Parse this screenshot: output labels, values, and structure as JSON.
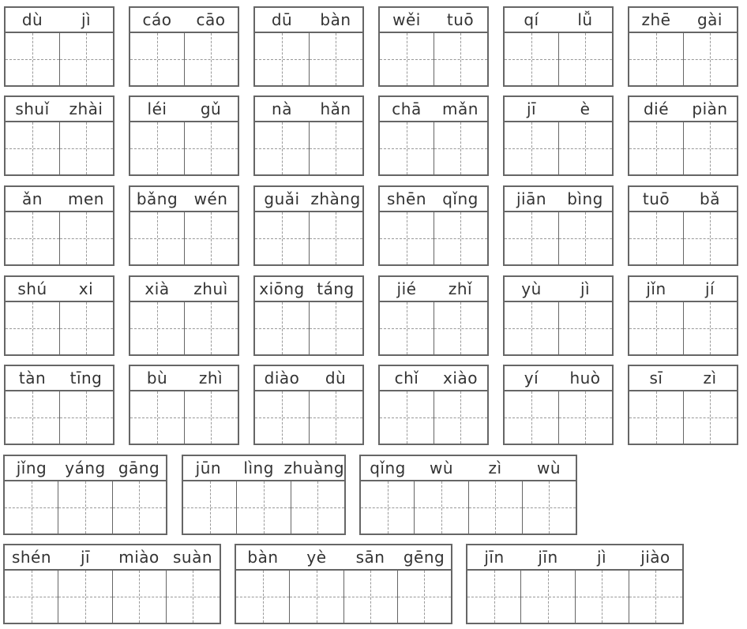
{
  "rows": [
    [
      [
        "dù",
        "jì"
      ],
      [
        "cáo",
        "cāo"
      ],
      [
        "dū",
        "bàn"
      ],
      [
        "wěi",
        "tuō"
      ],
      [
        "qí",
        "lǚ"
      ],
      [
        "zhē",
        "gài"
      ]
    ],
    [
      [
        "shuǐ",
        "zhài"
      ],
      [
        "léi",
        "gǔ"
      ],
      [
        "nà",
        "hǎn"
      ],
      [
        "chā",
        "mǎn"
      ],
      [
        "jī",
        "è"
      ],
      [
        "dié",
        "piàn"
      ]
    ],
    [
      [
        "ǎn",
        "men"
      ],
      [
        "bǎng",
        "wén"
      ],
      [
        "guǎi",
        "zhàng"
      ],
      [
        "shēn",
        "qǐng"
      ],
      [
        "jiān",
        "bìng"
      ],
      [
        "tuō",
        "bǎ"
      ]
    ],
    [
      [
        "shú",
        "xi"
      ],
      [
        "xià",
        "zhuì"
      ],
      [
        "xiōng",
        "táng"
      ],
      [
        "jié",
        "zhǐ"
      ],
      [
        "yù",
        "jì"
      ],
      [
        "jǐn",
        "jí"
      ]
    ],
    [
      [
        "tàn",
        "tīng"
      ],
      [
        "bù",
        "zhì"
      ],
      [
        "diào",
        "dù"
      ],
      [
        "chǐ",
        "xiào"
      ],
      [
        "yí",
        "huò"
      ],
      [
        "sī",
        "zì"
      ]
    ],
    [
      [
        "jǐng",
        "yáng",
        "gāng"
      ],
      [
        "jūn",
        "lìng",
        "zhuàng"
      ],
      [
        "qǐng",
        "wù",
        "zì",
        "wù"
      ]
    ],
    [
      [
        "shén",
        "jī",
        "miào",
        "suàn"
      ],
      [
        "bàn",
        "yè",
        "sān",
        "gēng"
      ],
      [
        "jīn",
        "jīn",
        "jì",
        "jiào"
      ]
    ]
  ]
}
